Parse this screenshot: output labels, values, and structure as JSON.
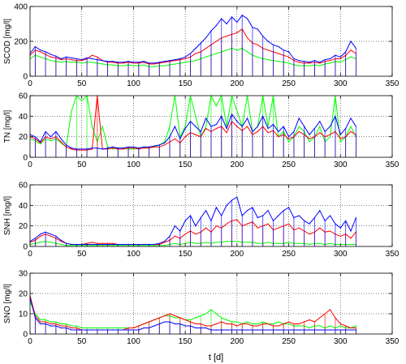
{
  "xlabel": "t [d]",
  "colors": {
    "blue": "#0000ff",
    "red": "#ff0000",
    "green": "#00ff00"
  },
  "chart_data": [
    {
      "type": "line",
      "ylabel": "SCOD  [mg/l]",
      "xlim": [
        0,
        350
      ],
      "ylim": [
        0,
        400
      ],
      "xticks": [
        0,
        50,
        100,
        150,
        200,
        250,
        300,
        350
      ],
      "yticks": [
        0,
        200,
        400
      ],
      "grid": true,
      "x": [
        0,
        5,
        10,
        15,
        20,
        25,
        30,
        35,
        40,
        45,
        50,
        55,
        60,
        65,
        70,
        75,
        80,
        85,
        90,
        95,
        100,
        105,
        110,
        115,
        120,
        125,
        130,
        135,
        140,
        145,
        150,
        155,
        160,
        165,
        170,
        175,
        180,
        185,
        190,
        195,
        200,
        205,
        210,
        215,
        220,
        225,
        230,
        235,
        240,
        245,
        250,
        255,
        260,
        265,
        270,
        275,
        280,
        285,
        290,
        295,
        300,
        305,
        310,
        315
      ],
      "series": [
        {
          "color": "blue",
          "values": [
            130,
            170,
            150,
            140,
            125,
            115,
            100,
            110,
            105,
            100,
            95,
            105,
            100,
            95,
            90,
            85,
            85,
            80,
            80,
            85,
            80,
            80,
            85,
            75,
            75,
            80,
            85,
            90,
            95,
            100,
            110,
            130,
            160,
            190,
            220,
            260,
            290,
            330,
            300,
            340,
            310,
            350,
            330,
            280,
            270,
            230,
            200,
            180,
            170,
            150,
            140,
            100,
            90,
            85,
            80,
            90,
            80,
            95,
            100,
            120,
            110,
            140,
            200,
            160
          ]
        },
        {
          "color": "red",
          "values": [
            120,
            150,
            140,
            125,
            110,
            105,
            95,
            100,
            95,
            90,
            90,
            100,
            120,
            110,
            90,
            80,
            80,
            75,
            75,
            80,
            75,
            75,
            80,
            70,
            70,
            75,
            80,
            85,
            90,
            95,
            100,
            110,
            130,
            140,
            160,
            180,
            200,
            220,
            230,
            240,
            250,
            270,
            220,
            190,
            180,
            160,
            150,
            140,
            130,
            120,
            110,
            90,
            80,
            75,
            75,
            80,
            75,
            85,
            90,
            100,
            100,
            120,
            150,
            130
          ]
        },
        {
          "color": "green",
          "values": [
            100,
            120,
            110,
            100,
            90,
            85,
            80,
            85,
            80,
            80,
            75,
            80,
            80,
            75,
            70,
            65,
            65,
            60,
            60,
            65,
            60,
            60,
            65,
            55,
            55,
            60,
            60,
            65,
            70,
            75,
            80,
            85,
            90,
            100,
            110,
            120,
            130,
            140,
            150,
            160,
            150,
            160,
            140,
            120,
            110,
            100,
            95,
            90,
            85,
            80,
            75,
            65,
            60,
            60,
            60,
            65,
            60,
            70,
            75,
            85,
            80,
            95,
            110,
            100
          ]
        }
      ]
    },
    {
      "type": "line",
      "ylabel": "TN  [mg/l]",
      "xlim": [
        0,
        350
      ],
      "ylim": [
        0,
        60
      ],
      "xticks": [
        0,
        50,
        100,
        150,
        200,
        250,
        300,
        350
      ],
      "yticks": [
        0,
        20,
        40,
        60
      ],
      "grid": true,
      "x": [
        0,
        5,
        10,
        15,
        20,
        25,
        30,
        35,
        40,
        45,
        50,
        55,
        60,
        65,
        70,
        75,
        80,
        85,
        90,
        95,
        100,
        105,
        110,
        115,
        120,
        125,
        130,
        135,
        140,
        145,
        150,
        155,
        160,
        165,
        170,
        175,
        180,
        185,
        190,
        195,
        200,
        205,
        210,
        215,
        220,
        225,
        230,
        235,
        240,
        245,
        250,
        255,
        260,
        265,
        270,
        275,
        280,
        285,
        290,
        295,
        300,
        305,
        310,
        315
      ],
      "series": [
        {
          "color": "blue",
          "values": [
            22,
            20,
            15,
            25,
            20,
            25,
            18,
            12,
            9,
            8,
            8,
            8,
            9,
            9,
            8,
            9,
            10,
            9,
            9,
            10,
            10,
            9,
            10,
            10,
            11,
            12,
            14,
            20,
            30,
            18,
            28,
            35,
            30,
            25,
            38,
            30,
            32,
            40,
            28,
            42,
            35,
            30,
            38,
            25,
            30,
            40,
            28,
            32,
            25,
            30,
            20,
            25,
            38,
            30,
            22,
            28,
            35,
            25,
            30,
            40,
            22,
            28,
            38,
            30
          ]
        },
        {
          "color": "red",
          "values": [
            20,
            18,
            14,
            20,
            18,
            20,
            15,
            10,
            8,
            7,
            7,
            7,
            8,
            60,
            8,
            8,
            9,
            8,
            8,
            9,
            9,
            8,
            9,
            9,
            10,
            10,
            12,
            15,
            18,
            14,
            20,
            24,
            22,
            20,
            28,
            25,
            28,
            30,
            24,
            35,
            30,
            26,
            30,
            22,
            25,
            30,
            24,
            26,
            20,
            22,
            18,
            20,
            25,
            22,
            18,
            20,
            24,
            20,
            22,
            25,
            18,
            20,
            25,
            22
          ]
        },
        {
          "color": "green",
          "values": [
            18,
            16,
            13,
            18,
            16,
            18,
            14,
            10,
            45,
            60,
            55,
            60,
            30,
            15,
            30,
            10,
            8,
            9,
            9,
            8,
            8,
            9,
            10,
            9,
            10,
            12,
            15,
            30,
            60,
            20,
            30,
            60,
            40,
            20,
            30,
            60,
            50,
            60,
            30,
            60,
            45,
            30,
            60,
            25,
            30,
            60,
            30,
            60,
            20,
            25,
            15,
            20,
            30,
            25,
            15,
            20,
            30,
            15,
            20,
            60,
            15,
            20,
            30,
            20
          ]
        }
      ]
    },
    {
      "type": "line",
      "ylabel": "SNH  [mg/l]",
      "xlim": [
        0,
        350
      ],
      "ylim": [
        0,
        60
      ],
      "xticks": [
        0,
        50,
        100,
        150,
        200,
        250,
        300,
        350
      ],
      "yticks": [
        0,
        20,
        40,
        60
      ],
      "grid": true,
      "x": [
        0,
        5,
        10,
        15,
        20,
        25,
        30,
        35,
        40,
        45,
        50,
        55,
        60,
        65,
        70,
        75,
        80,
        85,
        90,
        95,
        100,
        105,
        110,
        115,
        120,
        125,
        130,
        135,
        140,
        145,
        150,
        155,
        160,
        165,
        170,
        175,
        180,
        185,
        190,
        195,
        200,
        205,
        210,
        215,
        220,
        225,
        230,
        235,
        240,
        245,
        250,
        255,
        260,
        265,
        270,
        275,
        280,
        285,
        290,
        295,
        300,
        305,
        310,
        315
      ],
      "series": [
        {
          "color": "blue",
          "values": [
            5,
            8,
            12,
            14,
            12,
            10,
            6,
            3,
            2,
            2,
            2,
            2,
            2,
            2,
            2,
            2,
            2,
            2,
            2,
            2,
            2,
            2,
            2,
            2,
            2,
            3,
            5,
            10,
            20,
            15,
            25,
            30,
            20,
            28,
            35,
            25,
            38,
            30,
            40,
            45,
            48,
            30,
            35,
            38,
            28,
            30,
            35,
            25,
            30,
            35,
            38,
            28,
            30,
            25,
            22,
            28,
            35,
            25,
            30,
            22,
            18,
            25,
            15,
            28
          ]
        },
        {
          "color": "red",
          "values": [
            4,
            6,
            10,
            12,
            10,
            8,
            5,
            3,
            2,
            2,
            2,
            3,
            4,
            3,
            3,
            3,
            3,
            2,
            2,
            2,
            2,
            2,
            2,
            2,
            2,
            2,
            4,
            6,
            10,
            8,
            12,
            15,
            12,
            14,
            18,
            14,
            20,
            18,
            22,
            25,
            26,
            20,
            22,
            24,
            18,
            20,
            22,
            16,
            18,
            20,
            22,
            16,
            18,
            15,
            12,
            14,
            18,
            14,
            15,
            12,
            10,
            12,
            8,
            14
          ]
        },
        {
          "color": "green",
          "values": [
            2,
            3,
            4,
            5,
            4,
            3,
            2,
            1,
            1,
            1,
            1,
            1,
            1,
            1,
            1,
            1,
            1,
            1,
            1,
            1,
            1,
            1,
            1,
            1,
            1,
            1,
            1,
            2,
            3,
            2,
            3,
            4,
            3,
            3,
            4,
            3,
            4,
            4,
            5,
            5,
            5,
            4,
            4,
            4,
            3,
            3,
            4,
            3,
            3,
            3,
            4,
            3,
            3,
            3,
            2,
            3,
            3,
            2,
            3,
            2,
            2,
            2,
            2,
            2
          ]
        }
      ]
    },
    {
      "type": "line",
      "ylabel": "SNO  [mg/l]",
      "xlim": [
        0,
        350
      ],
      "ylim": [
        0,
        30
      ],
      "xticks": [
        0,
        50,
        100,
        150,
        200,
        250,
        300,
        350
      ],
      "yticks": [
        0,
        10,
        20,
        30
      ],
      "grid": true,
      "x": [
        0,
        5,
        10,
        15,
        20,
        25,
        30,
        35,
        40,
        45,
        50,
        55,
        60,
        65,
        70,
        75,
        80,
        85,
        90,
        95,
        100,
        105,
        110,
        115,
        120,
        125,
        130,
        135,
        140,
        145,
        150,
        155,
        160,
        165,
        170,
        175,
        180,
        185,
        190,
        195,
        200,
        205,
        210,
        215,
        220,
        225,
        230,
        235,
        240,
        245,
        250,
        255,
        260,
        265,
        270,
        275,
        280,
        285,
        290,
        295,
        300,
        305,
        310,
        315
      ],
      "series": [
        {
          "color": "blue",
          "values": [
            18,
            8,
            5,
            5,
            4,
            4,
            3,
            3,
            2,
            2,
            2,
            2,
            2,
            2,
            2,
            2,
            2,
            2,
            2,
            2,
            2,
            2,
            3,
            3,
            4,
            5,
            6,
            6,
            5,
            5,
            4,
            4,
            3,
            3,
            3,
            2,
            2,
            2,
            2,
            2,
            2,
            2,
            2,
            2,
            2,
            2,
            2,
            2,
            2,
            2,
            2,
            2,
            2,
            2,
            2,
            2,
            2,
            2,
            2,
            2,
            2,
            2,
            2,
            2
          ]
        },
        {
          "color": "red",
          "values": [
            19,
            9,
            6,
            6,
            5,
            5,
            4,
            4,
            3,
            3,
            2,
            2,
            2,
            2,
            2,
            2,
            2,
            2,
            2,
            3,
            3,
            4,
            5,
            6,
            7,
            8,
            9,
            10,
            9,
            8,
            7,
            6,
            5,
            5,
            4,
            4,
            5,
            6,
            5,
            5,
            4,
            5,
            5,
            4,
            4,
            5,
            5,
            4,
            4,
            5,
            6,
            5,
            5,
            6,
            7,
            6,
            8,
            10,
            12,
            8,
            5,
            4,
            3,
            3
          ]
        },
        {
          "color": "green",
          "values": [
            16,
            10,
            7,
            7,
            6,
            6,
            5,
            5,
            4,
            4,
            3,
            3,
            3,
            3,
            3,
            3,
            3,
            3,
            3,
            3,
            3,
            4,
            5,
            6,
            7,
            8,
            9,
            9,
            8,
            8,
            7,
            7,
            8,
            9,
            10,
            12,
            10,
            8,
            7,
            6,
            6,
            5,
            6,
            5,
            5,
            6,
            5,
            5,
            6,
            5,
            5,
            4,
            4,
            4,
            3,
            4,
            4,
            3,
            4,
            3,
            4,
            3,
            3,
            4
          ]
        }
      ]
    }
  ]
}
